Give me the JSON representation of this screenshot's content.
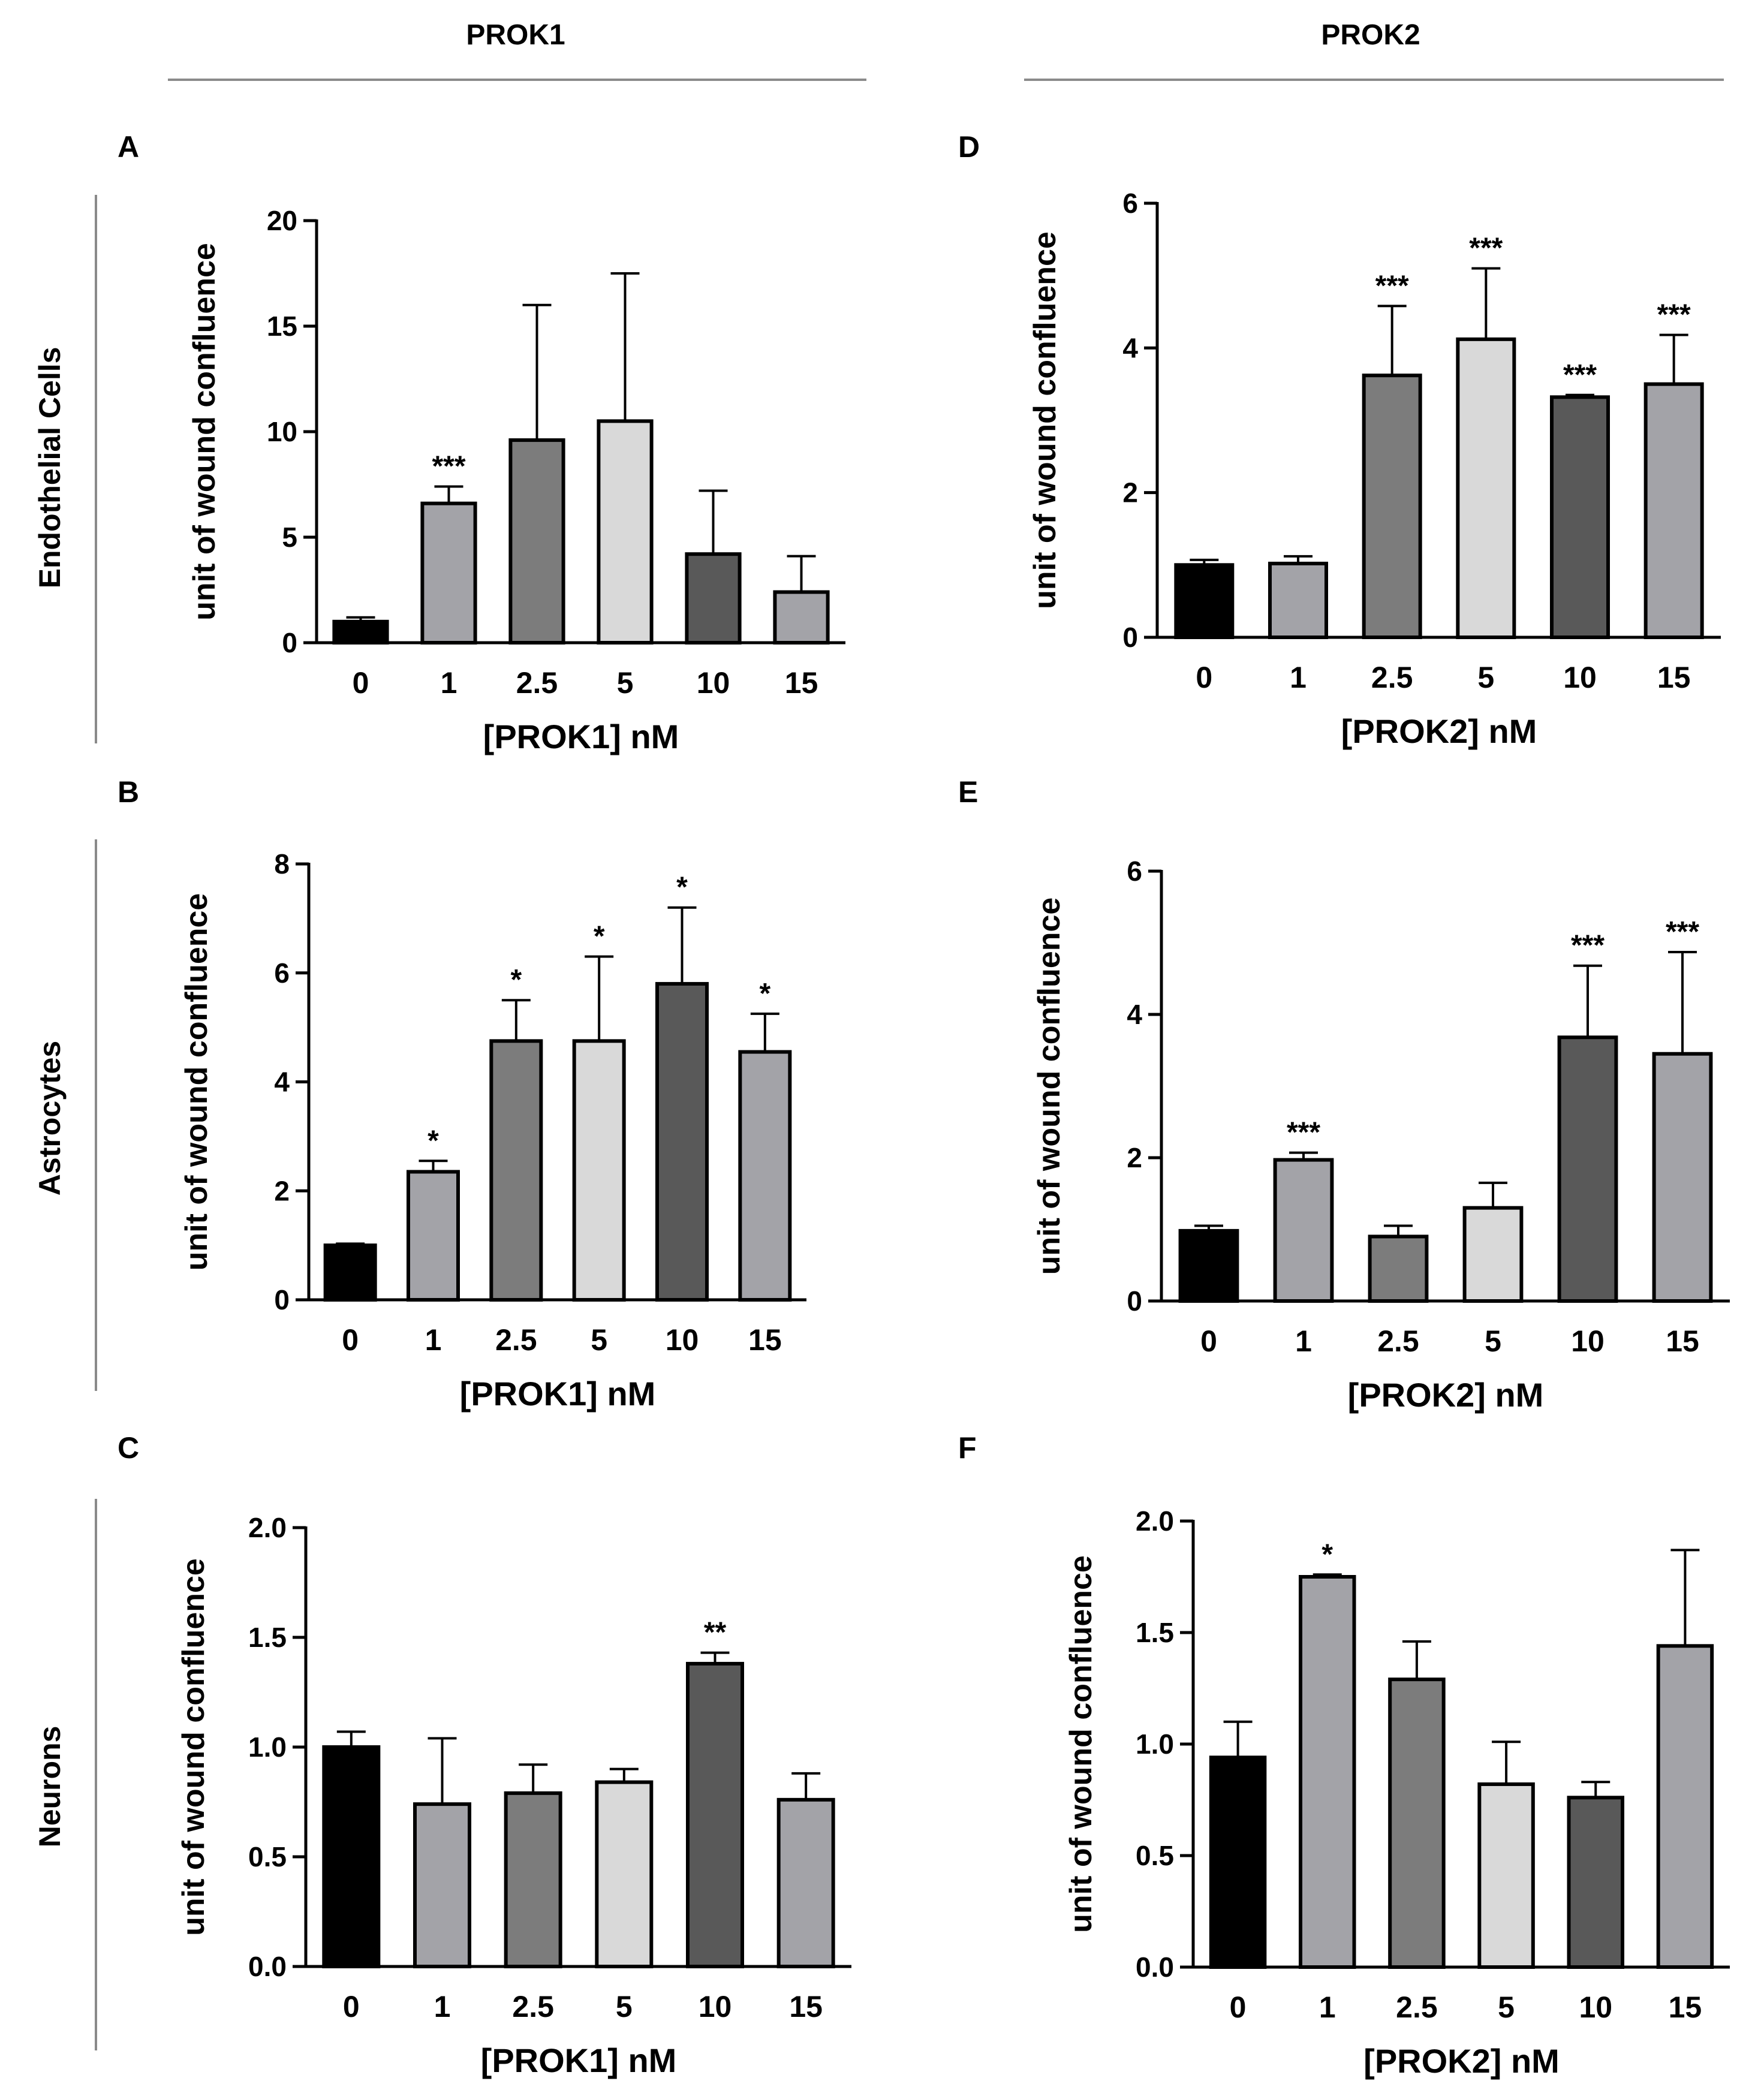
{
  "columns": {
    "left": "PROK1",
    "right": "PROK2"
  },
  "rows": [
    "Endothelial Cells",
    "Astrocytes",
    "Neurons"
  ],
  "bar_colors": [
    "#000000",
    "#a3a3a8",
    "#7c7c7c",
    "#d9d9d9",
    "#595959",
    "#a3a3a8"
  ],
  "chart_data": [
    {
      "panel": "A",
      "type": "bar",
      "categories": [
        "0",
        "1",
        "2.5",
        "5",
        "10",
        "15"
      ],
      "values": [
        1.0,
        6.6,
        9.6,
        10.5,
        4.2,
        2.4
      ],
      "errors": [
        0.2,
        0.8,
        6.4,
        7.0,
        3.0,
        1.7
      ],
      "significance": [
        "",
        "***",
        "",
        "",
        "",
        ""
      ],
      "ylabel": "unit of wound confluence",
      "xlabel": "[PROK1] nM",
      "ylim": [
        0,
        20
      ],
      "yticks": [
        "0",
        "5",
        "10",
        "15",
        "20"
      ]
    },
    {
      "panel": "B",
      "type": "bar",
      "categories": [
        "0",
        "1",
        "2.5",
        "5",
        "10",
        "15"
      ],
      "values": [
        1.0,
        2.35,
        4.75,
        4.75,
        5.8,
        4.55
      ],
      "errors": [
        0.03,
        0.2,
        0.75,
        1.55,
        1.4,
        0.7
      ],
      "significance": [
        "",
        "*",
        "*",
        "*",
        "*",
        "*"
      ],
      "ylabel": "unit of wound confluence",
      "xlabel": "[PROK1] nM",
      "ylim": [
        0,
        8
      ],
      "yticks": [
        "0",
        "2",
        "4",
        "6",
        "8"
      ]
    },
    {
      "panel": "C",
      "type": "bar",
      "categories": [
        "0",
        "1",
        "2.5",
        "5",
        "10",
        "15"
      ],
      "values": [
        1.0,
        0.74,
        0.79,
        0.84,
        1.38,
        0.76
      ],
      "errors": [
        0.07,
        0.3,
        0.13,
        0.06,
        0.05,
        0.12
      ],
      "significance": [
        "",
        "",
        "",
        "",
        "**",
        ""
      ],
      "ylabel": "unit of wound confluence",
      "xlabel": "[PROK1] nM",
      "ylim": [
        0,
        2.0
      ],
      "yticks": [
        "0.0",
        "0.5",
        "1.0",
        "1.5",
        "2.0"
      ]
    },
    {
      "panel": "D",
      "type": "bar",
      "categories": [
        "0",
        "1",
        "2.5",
        "5",
        "10",
        "15"
      ],
      "values": [
        1.0,
        1.02,
        3.62,
        4.12,
        3.32,
        3.5
      ],
      "errors": [
        0.07,
        0.1,
        0.96,
        0.98,
        0.03,
        0.68
      ],
      "significance": [
        "",
        "",
        "***",
        "***",
        "***",
        "***"
      ],
      "ylabel": "unit of wound confluence",
      "xlabel": "[PROK2] nM",
      "ylim": [
        0,
        6
      ],
      "yticks": [
        "0",
        "2",
        "4",
        "6"
      ]
    },
    {
      "panel": "E",
      "type": "bar",
      "categories": [
        "0",
        "1",
        "2.5",
        "5",
        "10",
        "15"
      ],
      "values": [
        0.98,
        1.97,
        0.9,
        1.3,
        3.68,
        3.45
      ],
      "errors": [
        0.07,
        0.1,
        0.15,
        0.35,
        1.0,
        1.42
      ],
      "significance": [
        "",
        "***",
        "",
        "",
        "***",
        "***"
      ],
      "ylabel": "unit of wound confluence",
      "xlabel": "[PROK2] nM",
      "ylim": [
        0,
        6
      ],
      "yticks": [
        "0",
        "2",
        "4",
        "6"
      ]
    },
    {
      "panel": "F",
      "type": "bar",
      "categories": [
        "0",
        "1",
        "2.5",
        "5",
        "10",
        "15"
      ],
      "values": [
        0.94,
        1.75,
        1.29,
        0.82,
        0.76,
        1.44
      ],
      "errors": [
        0.16,
        0.01,
        0.17,
        0.19,
        0.07,
        0.43
      ],
      "significance": [
        "",
        "*",
        "",
        "",
        "",
        ""
      ],
      "ylabel": "unit of wound confluence",
      "xlabel": "[PROK2] nM",
      "ylim": [
        0,
        2.0
      ],
      "yticks": [
        "0.0",
        "0.5",
        "1.0",
        "1.5",
        "2.0"
      ]
    }
  ]
}
